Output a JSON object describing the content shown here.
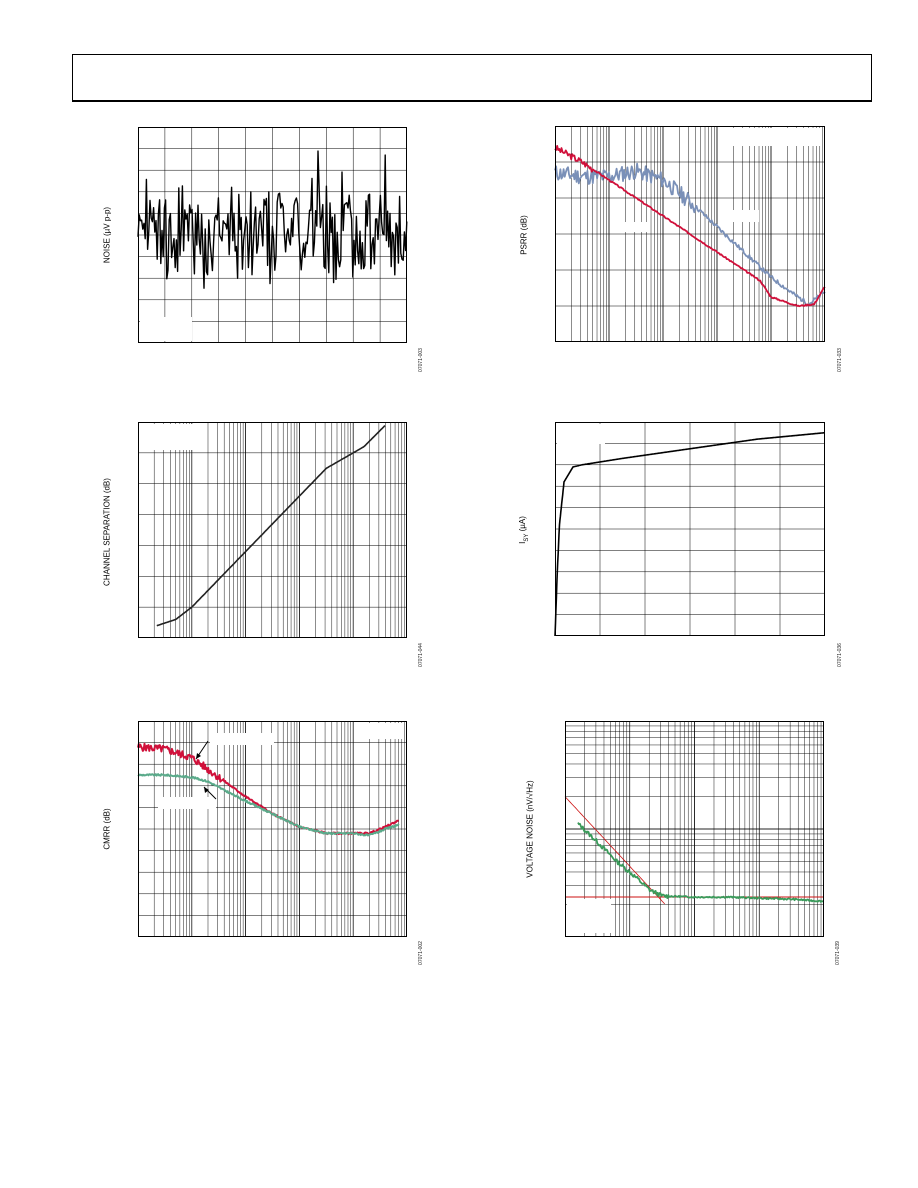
{
  "page": {
    "header_text": ""
  },
  "charts": [
    {
      "id": "noise",
      "type": "line",
      "ylabel": "NOISE (µV p-p)",
      "figure_id": "07071-003",
      "xscale": "linear",
      "x_divisions": 10,
      "yscale": "linear",
      "y_divisions": 10,
      "grid": true,
      "line_color": "#000000",
      "legend_box": "bottom-left"
    },
    {
      "id": "psrr",
      "type": "line",
      "ylabel": "PSRR (dB)",
      "figure_id": "07071-033",
      "xscale": "log",
      "x_decades": 5,
      "yscale": "linear",
      "y_divisions": 6,
      "grid": true,
      "series_colors": [
        "#7a90b8",
        "#d0103a"
      ],
      "legend_box": "top-right"
    },
    {
      "id": "channel-separation",
      "type": "line",
      "ylabel": "CHANNEL SEPARATION (dB)",
      "figure_id": "07071-044",
      "xscale": "log",
      "x_decades": 5,
      "yscale": "linear",
      "y_divisions": 7,
      "grid": true,
      "line_color": "#222222",
      "legend_box": "top-left"
    },
    {
      "id": "supply-current",
      "type": "line",
      "ylabel": "I",
      "ylabel_sub": "SY",
      "ylabel_unit": " (µA)",
      "figure_id": "07071-036",
      "xscale": "linear",
      "x_divisions": 6,
      "yscale": "linear",
      "y_divisions": 10,
      "grid": true,
      "line_color": "#000000",
      "legend_box": "top-left"
    },
    {
      "id": "cmrr",
      "type": "line",
      "ylabel": "CMRR (dB)",
      "figure_id": "07071-002",
      "xscale": "log",
      "x_decades": 5,
      "yscale": "linear",
      "y_divisions": 10,
      "grid": true,
      "series_colors": [
        "#d0103a",
        "#5aaa8a"
      ],
      "legend_box": "top-right"
    },
    {
      "id": "voltage-noise",
      "type": "line",
      "ylabel": "VOLTAGE NOISE (nV/√Hz)",
      "figure_id": "07071-039",
      "xscale": "log",
      "x_decades": 4,
      "yscale": "log",
      "y_decades": 2,
      "grid": true,
      "series_colors": [
        "#3a9a5a",
        "#cc1111"
      ],
      "legend_box": "bottom-left"
    }
  ],
  "chart_data": [
    {
      "type": "line",
      "chart": "noise",
      "note": "random peak-to-peak noise trace",
      "x": [
        0,
        1,
        2,
        3,
        4,
        5,
        6,
        7,
        8,
        9,
        10
      ],
      "ylim": [
        0,
        10
      ],
      "series": [
        {
          "values": [
            5.2,
            5.8,
            4.1,
            6.5,
            4.9,
            5.5,
            3.8,
            6.2,
            5.0,
            4.6,
            5.3
          ]
        }
      ]
    },
    {
      "type": "line",
      "chart": "psrr",
      "xlim": [
        0,
        5
      ],
      "ylim": [
        0,
        6
      ],
      "series": [
        {
          "x": [
            0,
            0.5,
            1,
            1.5,
            2,
            2.5,
            3,
            3.5,
            4,
            4.4,
            4.7,
            5.0
          ],
          "values": [
            4.7,
            4.6,
            4.6,
            4.75,
            4.5,
            3.9,
            3.2,
            2.5,
            1.8,
            1.35,
            1.05,
            1.4
          ]
        },
        {
          "x": [
            0,
            0.5,
            1,
            1.5,
            2,
            2.5,
            3,
            3.5,
            3.8,
            4.0,
            4.5,
            4.8,
            5.0
          ],
          "values": [
            5.4,
            5.0,
            4.5,
            4.0,
            3.5,
            3.0,
            2.5,
            2.0,
            1.7,
            1.25,
            1.0,
            1.05,
            1.55
          ]
        }
      ]
    },
    {
      "type": "line",
      "chart": "channel-separation",
      "xlim": [
        0,
        5
      ],
      "ylim": [
        0,
        7
      ],
      "series": [
        {
          "x": [
            0.35,
            0.7,
            1.0,
            1.5,
            2.0,
            2.5,
            3.0,
            3.5,
            3.8,
            4.2,
            4.6
          ],
          "values": [
            0.4,
            0.6,
            1.0,
            1.9,
            2.8,
            3.7,
            4.6,
            5.5,
            5.8,
            6.2,
            6.9
          ]
        }
      ]
    },
    {
      "type": "line",
      "chart": "supply-current",
      "xlim": [
        0,
        6
      ],
      "ylim": [
        0,
        10
      ],
      "series": [
        {
          "x": [
            0,
            0.05,
            0.1,
            0.2,
            0.4,
            0.6,
            0.9,
            1.5,
            2.5,
            3.5,
            4.5,
            5.5,
            6.0
          ],
          "values": [
            0,
            3.0,
            5.2,
            7.2,
            7.9,
            8.0,
            8.1,
            8.3,
            8.6,
            8.9,
            9.2,
            9.4,
            9.5
          ]
        }
      ]
    },
    {
      "type": "line",
      "chart": "cmrr",
      "xlim": [
        0,
        5
      ],
      "ylim": [
        0,
        10
      ],
      "series": [
        {
          "x": [
            0,
            0.5,
            1.0,
            1.5,
            2.0,
            2.5,
            3.0,
            3.5,
            4.0,
            4.3,
            4.6,
            4.85
          ],
          "values": [
            8.8,
            8.7,
            8.3,
            7.4,
            6.5,
            5.7,
            5.1,
            4.8,
            4.8,
            4.8,
            5.1,
            5.4
          ]
        },
        {
          "x": [
            0,
            0.5,
            1.0,
            1.3,
            1.6,
            2.0,
            2.5,
            3.0,
            3.5,
            4.0,
            4.3,
            4.6,
            4.85
          ],
          "values": [
            7.5,
            7.5,
            7.4,
            7.2,
            6.8,
            6.3,
            5.7,
            5.1,
            4.8,
            4.8,
            4.7,
            5.0,
            5.2
          ]
        }
      ]
    },
    {
      "type": "line",
      "chart": "voltage-noise",
      "xlim": [
        0,
        4
      ],
      "ylim": [
        0,
        2
      ],
      "series": [
        {
          "x": [
            0.2,
            0.5,
            0.8,
            1.1,
            1.3,
            1.5,
            2.0,
            2.5,
            3.0,
            3.5,
            4.0
          ],
          "values": [
            1.05,
            0.88,
            0.7,
            0.55,
            0.44,
            0.38,
            0.37,
            0.37,
            0.36,
            0.35,
            0.33
          ]
        },
        {
          "x": [
            0,
            1.55
          ],
          "values": [
            1.3,
            0.3
          ]
        },
        {
          "x": [
            0,
            4.0
          ],
          "values": [
            0.37,
            0.37
          ]
        },
        {
          "x": [
            1.48,
            1.48
          ],
          "values": [
            0.0,
            0.85
          ]
        }
      ]
    }
  ]
}
